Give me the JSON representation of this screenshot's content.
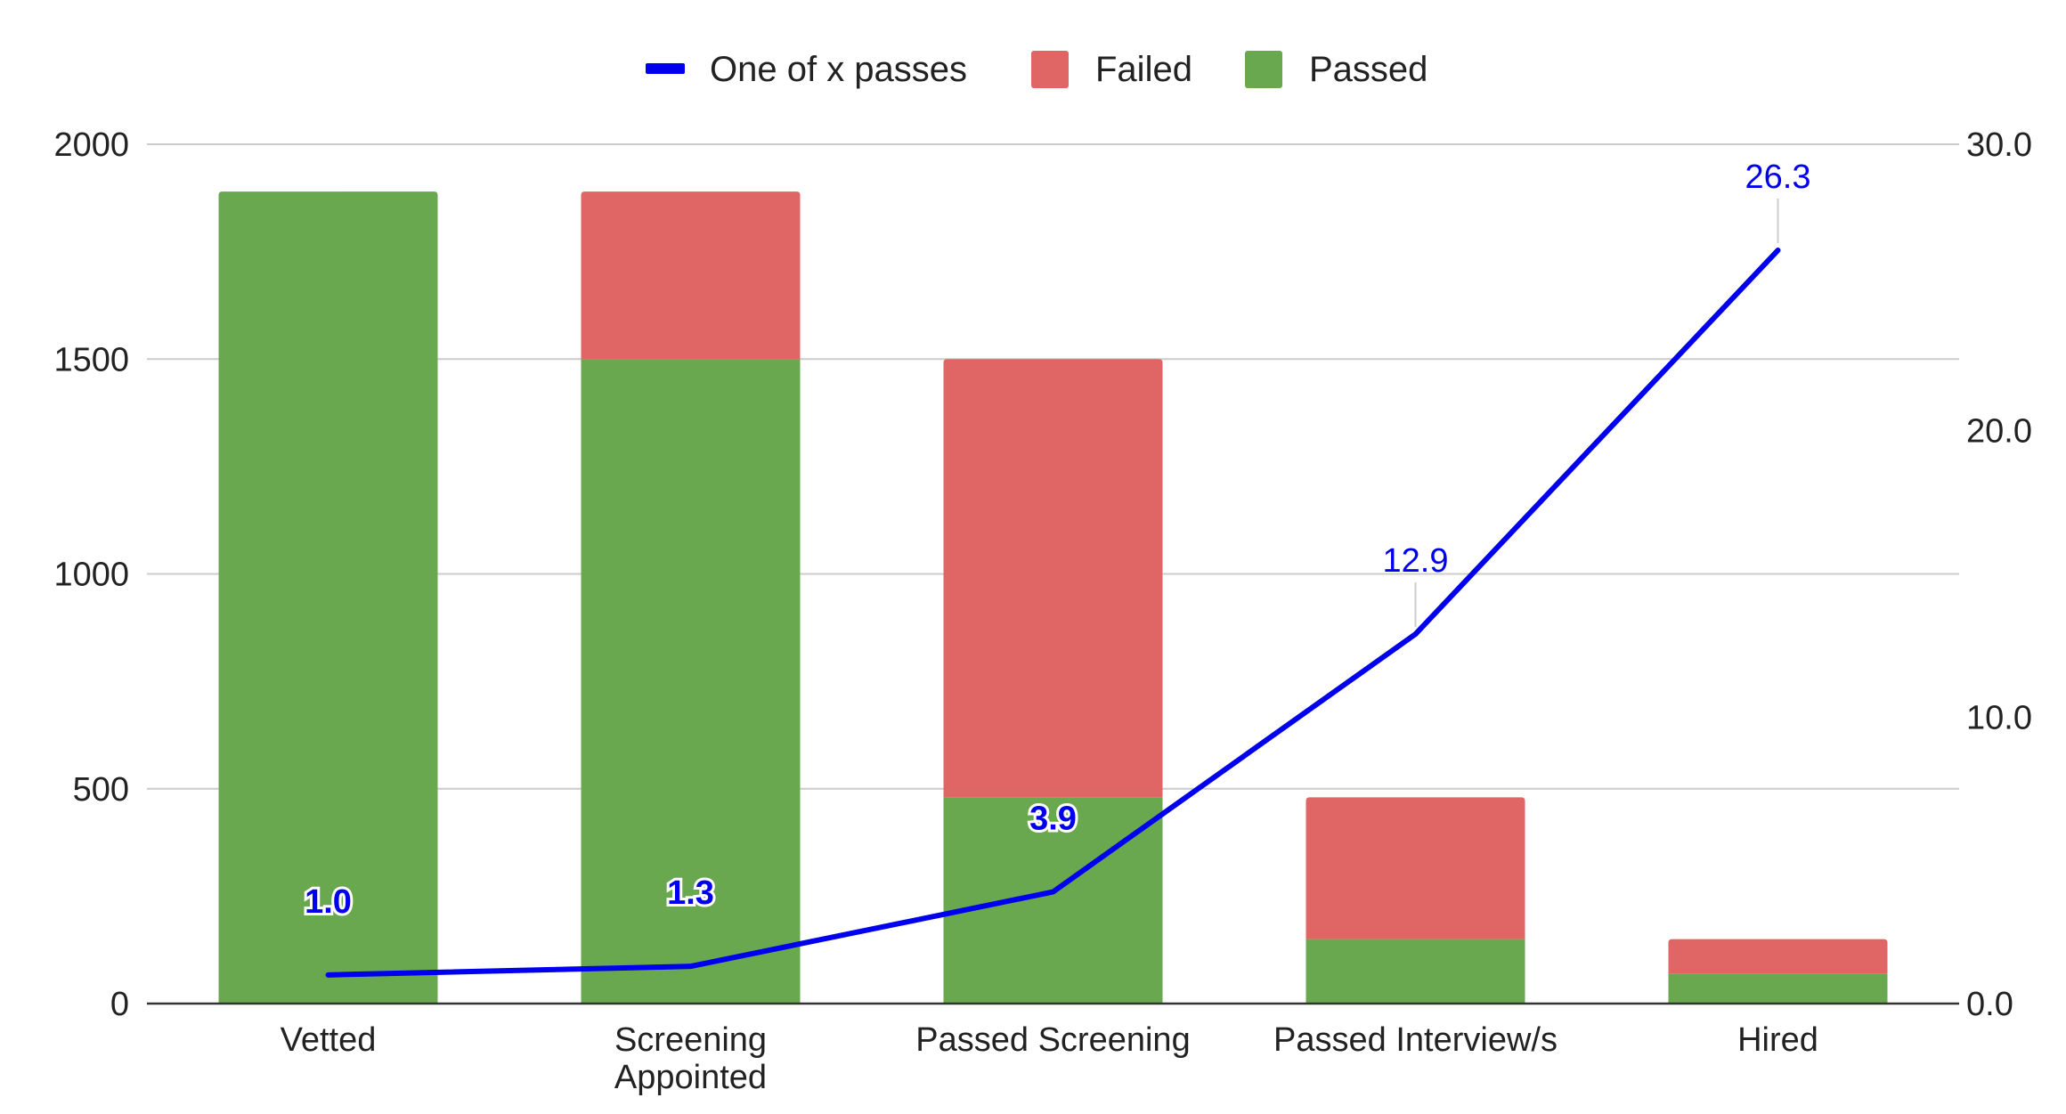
{
  "chart_data": {
    "type": "bar",
    "stacked": true,
    "categories": [
      [
        "Vetted"
      ],
      [
        "Screening",
        "Appointed"
      ],
      [
        "Passed Screening"
      ],
      [
        "Passed Interview/s"
      ],
      [
        "Hired"
      ]
    ],
    "series": [
      {
        "name": "Passed",
        "type": "bar",
        "axis": "left",
        "color": "#6aa84f",
        "values": [
          1890,
          1500,
          480,
          150,
          70
        ]
      },
      {
        "name": "Failed",
        "type": "bar",
        "axis": "left",
        "color": "#e06666",
        "values": [
          0,
          390,
          1020,
          330,
          80
        ]
      },
      {
        "name": "One of x passes",
        "type": "line",
        "axis": "right",
        "color": "#0000ee",
        "values": [
          1.0,
          1.3,
          3.9,
          12.9,
          26.3
        ],
        "labels": [
          "1.0",
          "1.3",
          "3.9",
          "12.9",
          "26.3"
        ]
      }
    ],
    "legend": [
      "One of x passes",
      "Failed",
      "Passed"
    ],
    "legend_position": "top",
    "left_axis": {
      "min": 0,
      "max": 2000,
      "ticks": [
        "0",
        "500",
        "1000",
        "1500",
        "2000"
      ]
    },
    "right_axis": {
      "min": 0,
      "max": 30,
      "ticks": [
        "0.0",
        "10.0",
        "20.0",
        "30.0"
      ]
    },
    "grid": true,
    "title": "",
    "xlabel": "",
    "ylabel": ""
  }
}
